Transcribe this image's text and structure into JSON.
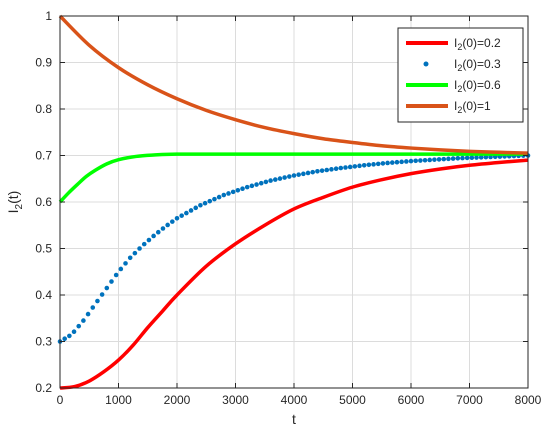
{
  "chart_data": {
    "type": "line",
    "title": "",
    "xlabel": "t",
    "ylabel_main": "I",
    "ylabel_sub": "2",
    "ylabel_rest": "(t)",
    "xlim": [
      0,
      8000
    ],
    "ylim": [
      0.2,
      1
    ],
    "grid": true,
    "legend_position": "top-right",
    "x_ticks": [
      0,
      1000,
      2000,
      3000,
      4000,
      5000,
      6000,
      7000,
      8000
    ],
    "y_ticks": [
      0.2,
      0.3,
      0.4,
      0.5,
      0.6,
      0.7,
      0.8,
      0.9,
      1
    ],
    "x_tick_labels": [
      "0",
      "1000",
      "2000",
      "3000",
      "4000",
      "5000",
      "6000",
      "7000",
      "8000"
    ],
    "y_tick_labels": [
      "0.2",
      "0.3",
      "0.4",
      "0.5",
      "0.6",
      "0.7",
      "0.8",
      "0.9",
      "1"
    ],
    "series": [
      {
        "name_main": "I",
        "name_sub": "2",
        "name_rest": "(0)=0.2",
        "style": "line",
        "color": "#ff0000",
        "x": [
          0,
          250,
          500,
          750,
          1000,
          1250,
          1500,
          1750,
          2000,
          2500,
          3000,
          3500,
          4000,
          4500,
          5000,
          5500,
          6000,
          6500,
          7000,
          7500,
          8000
        ],
        "y": [
          0.2,
          0.203,
          0.215,
          0.235,
          0.26,
          0.292,
          0.33,
          0.365,
          0.4,
          0.462,
          0.51,
          0.55,
          0.585,
          0.61,
          0.632,
          0.648,
          0.661,
          0.671,
          0.679,
          0.685,
          0.69
        ]
      },
      {
        "name_main": "I",
        "name_sub": "2",
        "name_rest": "(0)=0.3",
        "style": "dots",
        "color": "#0072bd",
        "x": [
          0,
          200,
          400,
          600,
          800,
          1000,
          1200,
          1400,
          1600,
          1800,
          2000,
          2400,
          2800,
          3200,
          3600,
          4000,
          4400,
          4800,
          5200,
          5600,
          6000,
          6400,
          6800,
          7200,
          7600,
          8000
        ],
        "y": [
          0.3,
          0.315,
          0.345,
          0.38,
          0.415,
          0.45,
          0.48,
          0.505,
          0.527,
          0.547,
          0.565,
          0.593,
          0.615,
          0.632,
          0.646,
          0.657,
          0.666,
          0.673,
          0.679,
          0.684,
          0.688,
          0.691,
          0.694,
          0.696,
          0.698,
          0.7
        ]
      },
      {
        "name_main": "I",
        "name_sub": "2",
        "name_rest": "(0)=0.6",
        "style": "line",
        "color": "#00ff00",
        "x": [
          0,
          150,
          300,
          450,
          600,
          800,
          1000,
          1300,
          1600,
          2000,
          3000,
          4000,
          5000,
          6000,
          7000,
          8000
        ],
        "y": [
          0.6,
          0.62,
          0.638,
          0.655,
          0.668,
          0.682,
          0.691,
          0.698,
          0.701,
          0.703,
          0.703,
          0.703,
          0.703,
          0.703,
          0.703,
          0.703
        ]
      },
      {
        "name_main": "I",
        "name_sub": "2",
        "name_rest": "(0)=1",
        "style": "line",
        "color": "#d95319",
        "x": [
          0,
          500,
          1000,
          1500,
          2000,
          2500,
          3000,
          3500,
          4000,
          4500,
          5000,
          5500,
          6000,
          6500,
          7000,
          7500,
          8000
        ],
        "y": [
          1,
          0.937,
          0.889,
          0.852,
          0.822,
          0.797,
          0.777,
          0.76,
          0.747,
          0.736,
          0.728,
          0.721,
          0.716,
          0.712,
          0.709,
          0.707,
          0.705
        ]
      }
    ]
  }
}
